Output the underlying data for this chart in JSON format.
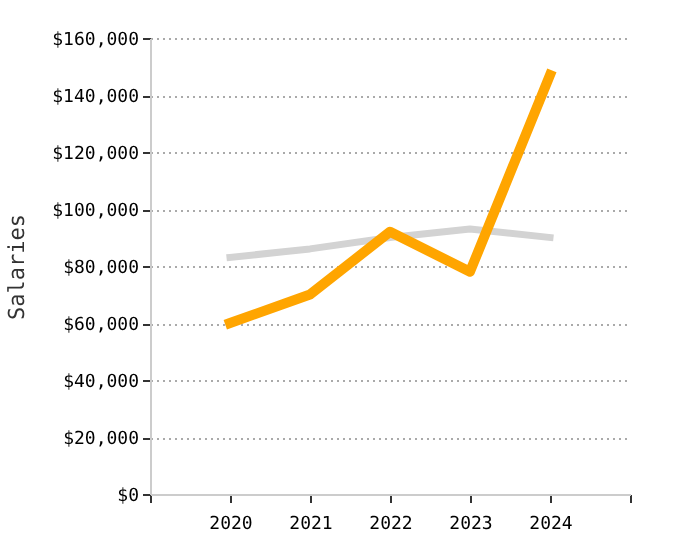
{
  "chart_data": {
    "type": "line",
    "ylabel": "Salaries",
    "x": [
      2020,
      2021,
      2022,
      2023,
      2024
    ],
    "xlim": [
      2019,
      2025
    ],
    "xticks": [
      {
        "value": 2019,
        "label": null
      },
      2020,
      2021,
      2022,
      2023,
      2024,
      {
        "value": 2025,
        "label": null
      }
    ],
    "ylim": [
      0,
      160000
    ],
    "yticks": [
      {
        "value": 0,
        "label": "$0"
      },
      {
        "value": 20000,
        "label": "$20,000"
      },
      {
        "value": 40000,
        "label": "$40,000"
      },
      {
        "value": 60000,
        "label": "$60,000"
      },
      {
        "value": 80000,
        "label": "$80,000"
      },
      {
        "value": 100000,
        "label": "$100,000"
      },
      {
        "value": 120000,
        "label": "$120,000"
      },
      {
        "value": 140000,
        "label": "$140,000"
      },
      {
        "value": 160000,
        "label": "$160,000"
      }
    ],
    "grid": "y",
    "series": [
      {
        "color": "#d3d3d3",
        "values": [
          83000,
          86000,
          90000,
          93000,
          90000
        ]
      },
      {
        "color": "#ffa500",
        "values": [
          60000,
          70000,
          92000,
          78000,
          147000
        ]
      }
    ]
  }
}
